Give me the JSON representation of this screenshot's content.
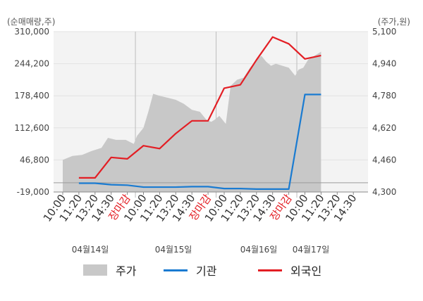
{
  "units": {
    "left": "(순매매량,주)",
    "right": "(주가,원)"
  },
  "legend": [
    {
      "label": "주가",
      "type": "area",
      "color": "#c8c8c8"
    },
    {
      "label": "기관",
      "type": "line",
      "color": "#1a7bd1"
    },
    {
      "label": "외국인",
      "type": "line",
      "color": "#e31e24"
    }
  ],
  "chart_data": {
    "type": "line",
    "y_left": {
      "ticks": [
        "310,000",
        "244,200",
        "178,400",
        "112,600",
        "46,800",
        "-19,000"
      ],
      "range": [
        -19000,
        310000
      ]
    },
    "y_right": {
      "ticks": [
        "5,100",
        "4,940",
        "4,780",
        "4,620",
        "4,460",
        "4,300"
      ],
      "range": [
        4300,
        5100
      ]
    },
    "x_ticks": [
      {
        "label": "10:00",
        "red": false
      },
      {
        "label": "11:20",
        "red": false
      },
      {
        "label": "13:20",
        "red": false
      },
      {
        "label": "14:30",
        "red": false
      },
      {
        "label": "장마감",
        "red": true
      },
      {
        "label": "10:00",
        "red": false
      },
      {
        "label": "11:20",
        "red": false
      },
      {
        "label": "13:20",
        "red": false
      },
      {
        "label": "14:30",
        "red": false
      },
      {
        "label": "장마감",
        "red": true
      },
      {
        "label": "10:00",
        "red": false
      },
      {
        "label": "11:20",
        "red": false
      },
      {
        "label": "13:20",
        "red": false
      },
      {
        "label": "14:30",
        "red": false
      },
      {
        "label": "장마감",
        "red": true
      },
      {
        "label": "10:00",
        "red": false
      },
      {
        "label": "11:20",
        "red": false
      },
      {
        "label": "13:20",
        "red": false
      },
      {
        "label": "14:30",
        "red": false
      }
    ],
    "dates": [
      "04월14일",
      "04월15일",
      "04월16일",
      "04월17일"
    ],
    "day_separators_at_tick": [
      4.5,
      9.5,
      14.5
    ],
    "series": [
      {
        "name": "외국인",
        "axis": "left",
        "color": "#e31e24",
        "x": [
          1,
          2,
          3,
          4,
          5,
          6,
          7,
          8,
          9,
          10,
          11,
          12,
          13,
          14,
          15,
          16
        ],
        "values": [
          10000,
          10000,
          52000,
          49000,
          76000,
          70000,
          101000,
          127000,
          127000,
          194000,
          201000,
          252000,
          299000,
          285000,
          254000,
          261000
        ]
      },
      {
        "name": "기관",
        "axis": "left",
        "color": "#1a7bd1",
        "x": [
          1,
          2,
          3,
          4,
          5,
          6,
          7,
          8,
          9,
          10,
          11,
          12,
          13,
          14,
          15,
          16
        ],
        "values": [
          -1000,
          -1000,
          -4000,
          -5000,
          -9000,
          -9000,
          -9000,
          -8000,
          -8000,
          -12000,
          -12000,
          -13000,
          -13000,
          -13000,
          181000,
          181000
        ]
      },
      {
        "name": "주가",
        "axis": "right",
        "color": "#c8c8c8",
        "x": [
          0,
          0.6,
          1.2,
          1.8,
          2.4,
          2.8,
          3.3,
          3.9,
          4.4,
          4.6,
          5,
          5.3,
          5.6,
          6,
          6.5,
          7,
          7.5,
          8,
          8.5,
          8.9,
          9.2,
          9.4,
          9.7,
          10.1,
          10.4,
          10.8,
          11.2,
          11.6,
          12,
          12.3,
          12.6,
          12.9,
          13.2,
          13.6,
          14,
          14.4,
          14.6,
          14.9,
          15.2,
          15.6,
          16
        ],
        "values": [
          4460,
          4480,
          4485,
          4505,
          4520,
          4570,
          4560,
          4560,
          4540,
          4580,
          4620,
          4700,
          4790,
          4780,
          4770,
          4760,
          4740,
          4710,
          4700,
          4660,
          4650,
          4660,
          4680,
          4640,
          4830,
          4860,
          4870,
          4920,
          4960,
          4980,
          4950,
          4930,
          4940,
          4930,
          4920,
          4880,
          4910,
          4920,
          4960,
          4980,
          5000
        ]
      }
    ]
  }
}
